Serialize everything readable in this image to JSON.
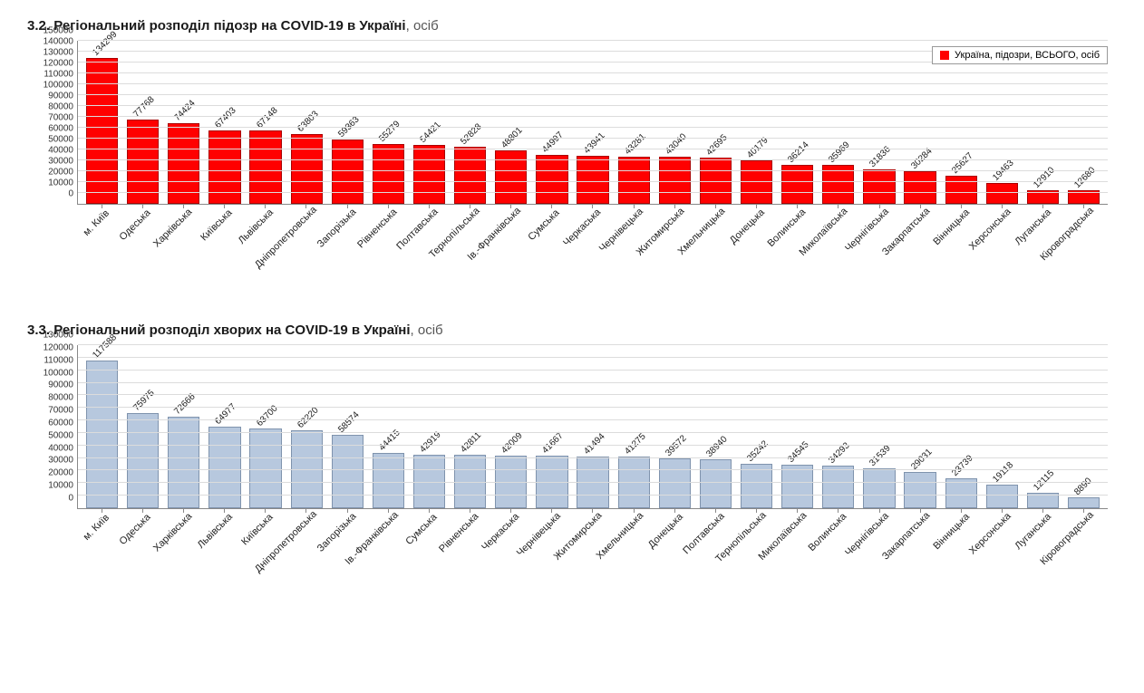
{
  "chart1": {
    "section_number": "3.2.",
    "title_bold": "Регіональний розподіл підозр на COVID-19 в Україні",
    "title_light": ", осіб",
    "type": "bar",
    "bar_color": "#ff0000",
    "bar_border": "#aa0000",
    "grid_color": "#dcdcdc",
    "axis_color": "#888888",
    "background_color": "#ffffff",
    "label_fontsize": 10,
    "xlabel_fontsize": 11,
    "legend_label": "Україна, підозри, ВСЬОГО, осіб",
    "legend_swatch": "#ff0000",
    "ylim": [
      0,
      150000
    ],
    "ytick_step": 10000,
    "categories": [
      "м. Київ",
      "Одеська",
      "Харківська",
      "Київська",
      "Львівська",
      "Дніпропетровська",
      "Запорізька",
      "Рівненська",
      "Полтавська",
      "Тернопільська",
      "Ів.-Франківська",
      "Сумська",
      "Черкаська",
      "Чернівецька",
      "Житомирська",
      "Хмельницька",
      "Донецька",
      "Волинська",
      "Миколаївська",
      "Чернігівська",
      "Закарпатська",
      "Вінницька",
      "Херсонська",
      "Луганська",
      "Кіровоградська"
    ],
    "values": [
      134299,
      77768,
      74424,
      67403,
      67148,
      63803,
      59363,
      55279,
      54421,
      52828,
      48801,
      44997,
      43941,
      43281,
      43040,
      42695,
      40179,
      36214,
      35969,
      31836,
      30284,
      25627,
      19463,
      12910,
      12680
    ]
  },
  "chart2": {
    "section_number": "3.3.",
    "title_bold": "Регіональний розподіл хворих на COVID-19 в Україні",
    "title_light": ", осіб",
    "type": "bar",
    "bar_color": "#b7c8de",
    "bar_border": "#7f93ad",
    "grid_color": "#dcdcdc",
    "axis_color": "#888888",
    "background_color": "#ffffff",
    "label_fontsize": 10,
    "xlabel_fontsize": 11,
    "ylim": [
      0,
      130000
    ],
    "ytick_step": 10000,
    "categories": [
      "м. Київ",
      "Одеська",
      "Харківська",
      "Львівська",
      "Київська",
      "Дніпропетровська",
      "Запорізька",
      "Ів.-Франківська",
      "Сумська",
      "Рівненська",
      "Черкаська",
      "Чернівецька",
      "Житомирська",
      "Хмельницька",
      "Донецька",
      "Полтавська",
      "Тернопільська",
      "Миколаївська",
      "Волинська",
      "Чернігівська",
      "Закарпатська",
      "Вінницька",
      "Херсонська",
      "Луганська",
      "Кіровоградська"
    ],
    "values": [
      117588,
      75975,
      72666,
      64977,
      63700,
      62220,
      58574,
      44415,
      42919,
      42811,
      42009,
      41667,
      41494,
      41275,
      39572,
      38940,
      35242,
      34545,
      34293,
      31539,
      29031,
      23739,
      19118,
      12115,
      8890
    ]
  }
}
